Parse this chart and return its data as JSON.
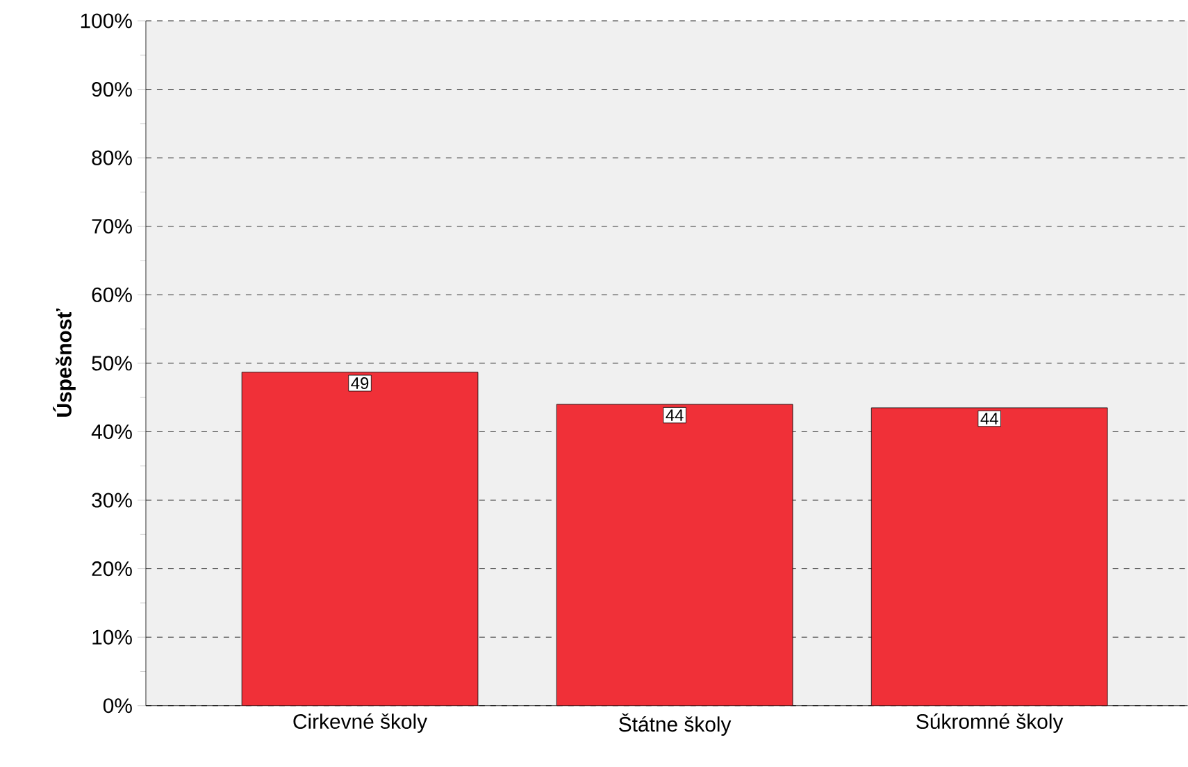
{
  "chart_data": {
    "type": "bar",
    "ylabel": "**Úspešnosť**",
    "categories": [
      "Cirkevné školy",
      "Štátne školy",
      "Súkromné školy"
    ],
    "values": [
      48.7,
      44,
      43.5
    ],
    "color": "#f03038",
    "value_labels": [
      "49",
      "44",
      "44"
    ],
    "ylim": [
      0,
      100
    ],
    "yticks": [
      {
        "value": 0,
        "label": "0%"
      },
      {
        "value": 10,
        "label": "10%"
      },
      {
        "value": 20,
        "label": "20%"
      },
      {
        "value": 30,
        "label": "30%"
      },
      {
        "value": 40,
        "label": "40%"
      },
      {
        "value": 50,
        "label": "50%"
      },
      {
        "value": 60,
        "label": "60%"
      },
      {
        "value": 70,
        "label": "70%"
      },
      {
        "value": 80,
        "label": "80%"
      },
      {
        "value": 90,
        "label": "90%"
      },
      {
        "value": 100,
        "label": "100%"
      }
    ],
    "grid": "y"
  }
}
